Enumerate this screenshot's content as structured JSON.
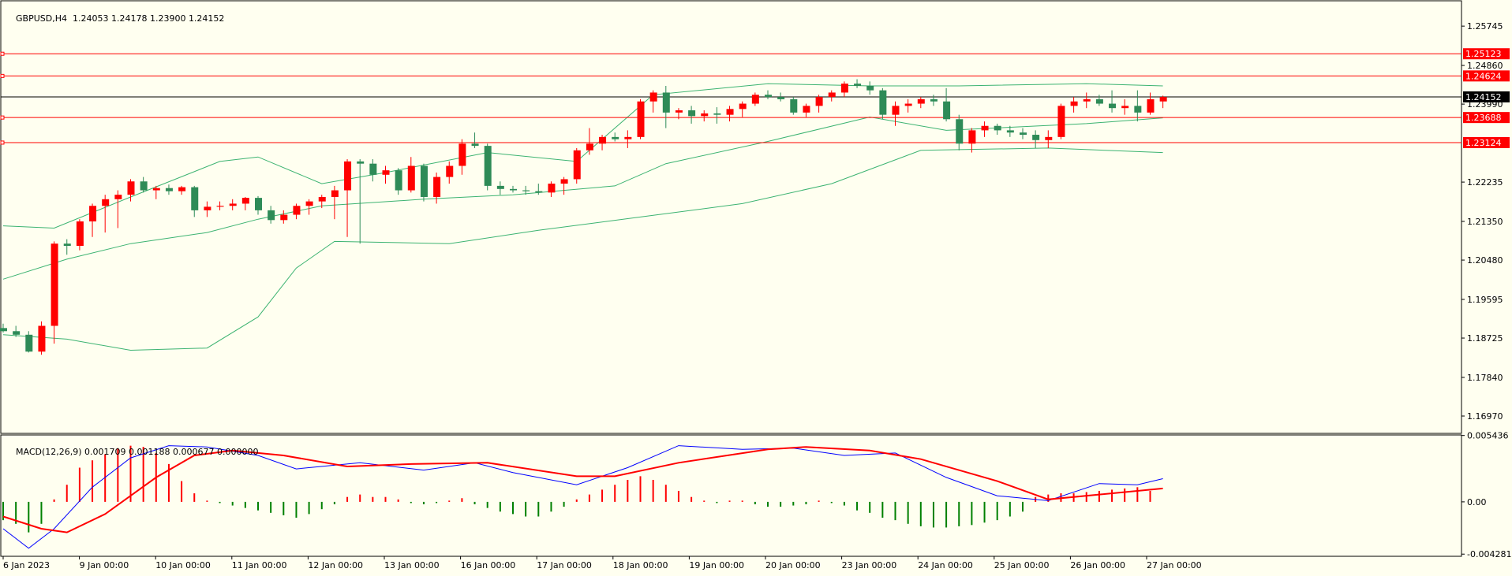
{
  "chart_data": {
    "type": "candlestick",
    "symbol_label": "GBPUSD,H4",
    "ohlc_label": "1.24053 1.24178 1.23900 1.24152",
    "colors": {
      "background": "#fffff0",
      "bull": "#ff0000",
      "bear": "#2e8b57",
      "bands": "#3cb371",
      "level_line": "#ff0000",
      "price_line": "#000000",
      "macd_signal": "#ff0000",
      "macd_line": "#0000ff",
      "macd_hist_pos": "#ff0000",
      "macd_hist_neg": "#008000"
    },
    "price_axis_ticks": [
      "1.25745",
      "1.24860",
      "1.23990",
      "1.22235",
      "1.21350",
      "1.20480",
      "1.19595",
      "1.18725",
      "1.17840",
      "1.16970"
    ],
    "price_levels": [
      {
        "label": "1.25123",
        "value": 1.25123
      },
      {
        "label": "1.24624",
        "value": 1.24624
      },
      {
        "label": "1.23688",
        "value": 1.23688
      },
      {
        "label": "1.23124",
        "value": 1.23124
      }
    ],
    "current_price": {
      "label": "1.24152",
      "value": 1.24152
    },
    "price_range": [
      1.1658,
      1.26315
    ],
    "time_labels": [
      "6 Jan 2023",
      "9 Jan 00:00",
      "10 Jan 00:00",
      "11 Jan 00:00",
      "12 Jan 00:00",
      "13 Jan 00:00",
      "16 Jan 00:00",
      "17 Jan 00:00",
      "18 Jan 00:00",
      "19 Jan 00:00",
      "20 Jan 00:00",
      "23 Jan 00:00",
      "24 Jan 00:00",
      "25 Jan 00:00",
      "26 Jan 00:00",
      "27 Jan 00:00"
    ],
    "candles": [
      [
        1.1895,
        1.1905,
        1.1885,
        1.1888
      ],
      [
        1.1888,
        1.19,
        1.1875,
        1.188
      ],
      [
        1.188,
        1.1888,
        1.184,
        1.1842
      ],
      [
        1.1842,
        1.191,
        1.1835,
        1.19
      ],
      [
        1.19,
        1.209,
        1.186,
        1.2085
      ],
      [
        1.2085,
        1.2095,
        1.206,
        1.208
      ],
      [
        1.208,
        1.214,
        1.207,
        1.2135
      ],
      [
        1.2135,
        1.2175,
        1.21,
        1.217
      ],
      [
        1.217,
        1.2195,
        1.211,
        1.2185
      ],
      [
        1.2185,
        1.2205,
        1.212,
        1.2195
      ],
      [
        1.2195,
        1.223,
        1.218,
        1.2225
      ],
      [
        1.2225,
        1.2235,
        1.22,
        1.2205
      ],
      [
        1.2205,
        1.2215,
        1.2185,
        1.221
      ],
      [
        1.221,
        1.2218,
        1.2195,
        1.2203
      ],
      [
        1.2203,
        1.2215,
        1.2195,
        1.2212
      ],
      [
        1.2212,
        1.2215,
        1.2145,
        1.216
      ],
      [
        1.216,
        1.218,
        1.2145,
        1.2168
      ],
      [
        1.2168,
        1.218,
        1.216,
        1.217
      ],
      [
        1.217,
        1.2185,
        1.216,
        1.2175
      ],
      [
        1.2175,
        1.219,
        1.216,
        1.2188
      ],
      [
        1.2188,
        1.2192,
        1.215,
        1.216
      ],
      [
        1.216,
        1.217,
        1.213,
        1.2138
      ],
      [
        1.2138,
        1.216,
        1.213,
        1.215
      ],
      [
        1.215,
        1.2175,
        1.214,
        1.217
      ],
      [
        1.217,
        1.2185,
        1.215,
        1.218
      ],
      [
        1.218,
        1.2195,
        1.2165,
        1.219
      ],
      [
        1.219,
        1.2215,
        1.214,
        1.2205
      ],
      [
        1.2205,
        1.2275,
        1.21,
        1.227
      ],
      [
        1.227,
        1.2275,
        1.2085,
        1.2265
      ],
      [
        1.2265,
        1.2275,
        1.2225,
        1.224
      ],
      [
        1.224,
        1.226,
        1.222,
        1.225
      ],
      [
        1.225,
        1.2255,
        1.2195,
        1.2205
      ],
      [
        1.2205,
        1.228,
        1.22,
        1.226
      ],
      [
        1.226,
        1.2265,
        1.218,
        1.219
      ],
      [
        1.219,
        1.2245,
        1.2175,
        1.2235
      ],
      [
        1.2235,
        1.227,
        1.222,
        1.226
      ],
      [
        1.226,
        1.232,
        1.224,
        1.231
      ],
      [
        1.231,
        1.2335,
        1.23,
        1.2305
      ],
      [
        1.2305,
        1.231,
        1.2205,
        1.2215
      ],
      [
        1.2215,
        1.2225,
        1.2195,
        1.2208
      ],
      [
        1.2208,
        1.2215,
        1.22,
        1.2205
      ],
      [
        1.2205,
        1.2215,
        1.2195,
        1.2203
      ],
      [
        1.2203,
        1.222,
        1.2195,
        1.22
      ],
      [
        1.22,
        1.2225,
        1.219,
        1.222
      ],
      [
        1.222,
        1.2235,
        1.2195,
        1.223
      ],
      [
        1.223,
        1.23,
        1.222,
        1.2295
      ],
      [
        1.2295,
        1.2345,
        1.2285,
        1.231
      ],
      [
        1.231,
        1.233,
        1.2295,
        1.2325
      ],
      [
        1.2325,
        1.2335,
        1.2315,
        1.232
      ],
      [
        1.232,
        1.234,
        1.23,
        1.2325
      ],
      [
        1.2325,
        1.241,
        1.232,
        1.2405
      ],
      [
        1.2405,
        1.243,
        1.238,
        1.2425
      ],
      [
        1.2425,
        1.244,
        1.2345,
        1.238
      ],
      [
        1.238,
        1.239,
        1.2365,
        1.2385
      ],
      [
        1.2385,
        1.2395,
        1.2355,
        1.2372
      ],
      [
        1.2372,
        1.2385,
        1.236,
        1.2378
      ],
      [
        1.2378,
        1.2392,
        1.2355,
        1.2375
      ],
      [
        1.2375,
        1.2395,
        1.236,
        1.2388
      ],
      [
        1.2388,
        1.2405,
        1.237,
        1.24
      ],
      [
        1.24,
        1.2425,
        1.2395,
        1.242
      ],
      [
        1.242,
        1.243,
        1.241,
        1.2415
      ],
      [
        1.2415,
        1.2425,
        1.2405,
        1.241
      ],
      [
        1.241,
        1.2415,
        1.2375,
        1.238
      ],
      [
        1.238,
        1.24,
        1.237,
        1.2395
      ],
      [
        1.2395,
        1.242,
        1.238,
        1.2415
      ],
      [
        1.2415,
        1.243,
        1.2405,
        1.2425
      ],
      [
        1.2425,
        1.245,
        1.2415,
        1.2445
      ],
      [
        1.2445,
        1.2455,
        1.2435,
        1.244
      ],
      [
        1.244,
        1.245,
        1.242,
        1.243
      ],
      [
        1.243,
        1.2435,
        1.2365,
        1.2375
      ],
      [
        1.2375,
        1.2405,
        1.235,
        1.2395
      ],
      [
        1.2395,
        1.241,
        1.238,
        1.24
      ],
      [
        1.24,
        1.2415,
        1.239,
        1.241
      ],
      [
        1.241,
        1.242,
        1.2395,
        1.2405
      ],
      [
        1.2405,
        1.2435,
        1.236,
        1.2365
      ],
      [
        1.2365,
        1.2375,
        1.2295,
        1.231
      ],
      [
        1.231,
        1.2345,
        1.229,
        1.234
      ],
      [
        1.234,
        1.236,
        1.2325,
        1.235
      ],
      [
        1.235,
        1.2355,
        1.233,
        1.234
      ],
      [
        1.234,
        1.235,
        1.2325,
        1.2335
      ],
      [
        1.2335,
        1.2345,
        1.232,
        1.233
      ],
      [
        1.233,
        1.234,
        1.23,
        1.2318
      ],
      [
        1.2318,
        1.234,
        1.23,
        1.2325
      ],
      [
        1.2325,
        1.24,
        1.232,
        1.2395
      ],
      [
        1.2395,
        1.2415,
        1.238,
        1.2405
      ],
      [
        1.2405,
        1.2425,
        1.239,
        1.241
      ],
      [
        1.241,
        1.242,
        1.2395,
        1.24
      ],
      [
        1.24,
        1.243,
        1.238,
        1.239
      ],
      [
        1.239,
        1.241,
        1.2375,
        1.2395
      ],
      [
        1.2395,
        1.243,
        1.236,
        1.238
      ],
      [
        1.238,
        1.2425,
        1.2375,
        1.241
      ],
      [
        1.2405,
        1.2418,
        1.239,
        1.2415
      ]
    ],
    "bollinger": {
      "upper": [
        [
          0,
          1.2125
        ],
        [
          4,
          1.212
        ],
        [
          10,
          1.219
        ],
        [
          17,
          1.227
        ],
        [
          20,
          1.228
        ],
        [
          25,
          1.222
        ],
        [
          30,
          1.2245
        ],
        [
          38,
          1.229
        ],
        [
          45,
          1.227
        ],
        [
          51,
          1.242
        ],
        [
          60,
          1.2445
        ],
        [
          68,
          1.244
        ],
        [
          75,
          1.244
        ],
        [
          85,
          1.2445
        ],
        [
          91,
          1.244
        ]
      ],
      "middle": [
        [
          0,
          1.2005
        ],
        [
          5,
          1.205
        ],
        [
          10,
          1.2085
        ],
        [
          16,
          1.211
        ],
        [
          20,
          1.214
        ],
        [
          25,
          1.217
        ],
        [
          33,
          1.2185
        ],
        [
          40,
          1.2195
        ],
        [
          48,
          1.2215
        ],
        [
          52,
          1.2265
        ],
        [
          60,
          1.2315
        ],
        [
          68,
          1.237
        ],
        [
          74,
          1.234
        ],
        [
          85,
          1.2355
        ],
        [
          91,
          1.2368
        ]
      ],
      "lower": [
        [
          0,
          1.188
        ],
        [
          5,
          1.187
        ],
        [
          10,
          1.1845
        ],
        [
          16,
          1.185
        ],
        [
          20,
          1.192
        ],
        [
          23,
          1.203
        ],
        [
          26,
          1.209
        ],
        [
          35,
          1.2085
        ],
        [
          42,
          1.2115
        ],
        [
          50,
          1.2145
        ],
        [
          58,
          1.2175
        ],
        [
          65,
          1.222
        ],
        [
          72,
          1.2295
        ],
        [
          82,
          1.23
        ],
        [
          91,
          1.229
        ]
      ]
    },
    "macd": {
      "label": "MACD(12,26,9) 0.001709 0.001188 0.000677 0.000000",
      "axis_ticks": [
        "0.005436",
        "0.00",
        "-0.004281"
      ],
      "range": [
        -0.00446,
        0.00548
      ],
      "histogram": [
        -0.0015,
        -0.0018,
        -0.0025,
        -0.0018,
        0.0002,
        0.0014,
        0.0028,
        0.0034,
        0.0039,
        0.0044,
        0.0046,
        0.0045,
        0.004,
        0.0031,
        0.0017,
        0.0007,
        0.0001,
        -0.0001,
        -0.0003,
        -0.0005,
        -0.0007,
        -0.0009,
        -0.0011,
        -0.0013,
        -0.001,
        -0.0006,
        -0.0002,
        0.0004,
        0.0006,
        0.0004,
        0.0004,
        0.0002,
        -0.0001,
        -0.0002,
        -0.0001,
        0.0001,
        0.0003,
        -0.0002,
        -0.0005,
        -0.0008,
        -0.001,
        -0.0012,
        -0.0012,
        -0.0008,
        -0.0004,
        0.0002,
        0.0006,
        0.001,
        0.0014,
        0.0018,
        0.0021,
        0.0018,
        0.0014,
        0.0009,
        0.0004,
        0.0001,
        -0.0001,
        0.0001,
        0.0001,
        -0.0002,
        -0.0004,
        -0.0004,
        -0.0003,
        -0.0002,
        0.0001,
        -0.0001,
        -0.0003,
        -0.0007,
        -0.0009,
        -0.0013,
        -0.0015,
        -0.0018,
        -0.002,
        -0.0021,
        -0.0021,
        -0.002,
        -0.0019,
        -0.0017,
        -0.0015,
        -0.0012,
        -0.0008,
        0.0004,
        0.0006,
        0.0007,
        0.0007,
        0.0008,
        0.0009,
        0.001,
        0.0011,
        0.0012,
        0.0009
      ],
      "signal": [
        [
          0,
          -0.0012
        ],
        [
          3,
          -0.0022
        ],
        [
          5,
          -0.0025
        ],
        [
          8,
          -0.001
        ],
        [
          12,
          0.002
        ],
        [
          15,
          0.0038
        ],
        [
          18,
          0.0042
        ],
        [
          22,
          0.0038
        ],
        [
          27,
          0.0029
        ],
        [
          32,
          0.0031
        ],
        [
          38,
          0.0032
        ],
        [
          45,
          0.0021
        ],
        [
          48,
          0.0021
        ],
        [
          53,
          0.0032
        ],
        [
          60,
          0.0043
        ],
        [
          63,
          0.0045
        ],
        [
          68,
          0.0042
        ],
        [
          72,
          0.0035
        ],
        [
          78,
          0.0017
        ],
        [
          82,
          0.0002
        ],
        [
          86,
          0.0006
        ],
        [
          91,
          0.0011
        ]
      ],
      "main": [
        [
          0,
          -0.0022
        ],
        [
          2,
          -0.0038
        ],
        [
          4,
          -0.0022
        ],
        [
          7,
          0.0012
        ],
        [
          10,
          0.0036
        ],
        [
          13,
          0.0046
        ],
        [
          16,
          0.0045
        ],
        [
          20,
          0.0038
        ],
        [
          23,
          0.0027
        ],
        [
          28,
          0.0032
        ],
        [
          33,
          0.0026
        ],
        [
          37,
          0.0032
        ],
        [
          40,
          0.0024
        ],
        [
          45,
          0.0014
        ],
        [
          49,
          0.0028
        ],
        [
          53,
          0.0046
        ],
        [
          58,
          0.0043
        ],
        [
          62,
          0.0044
        ],
        [
          66,
          0.0038
        ],
        [
          70,
          0.004
        ],
        [
          74,
          0.002
        ],
        [
          78,
          0.0005
        ],
        [
          82,
          0.0001
        ],
        [
          86,
          0.0015
        ],
        [
          89,
          0.0014
        ],
        [
          91,
          0.0019
        ]
      ]
    }
  }
}
